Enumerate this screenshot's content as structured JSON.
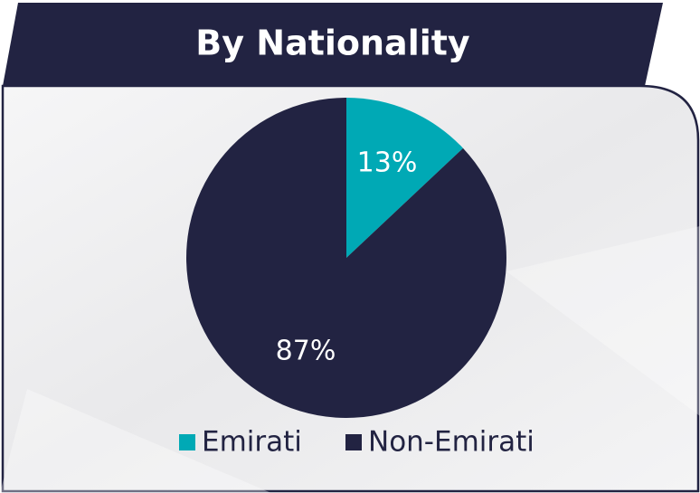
{
  "chart_data": {
    "type": "pie",
    "title": "By Nationality",
    "categories": [
      "Emirati",
      "Non-Emirati"
    ],
    "values": [
      13,
      87
    ],
    "value_labels": [
      "13%",
      "87%"
    ],
    "colors": [
      "#00a9b5",
      "#222342"
    ],
    "legend": "bottom"
  }
}
